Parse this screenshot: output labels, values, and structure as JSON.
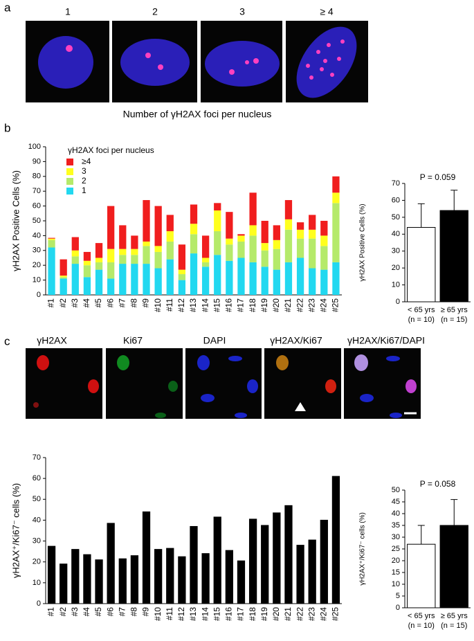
{
  "figure": {
    "panel_labels": [
      "a",
      "b",
      "c"
    ],
    "foci_labels": [
      "1",
      "2",
      "3",
      "≥ 4"
    ],
    "foci_caption": "Number of γH2AX foci per nucleus",
    "channel_labels": [
      "γH2AX",
      "Ki67",
      "DAPI",
      "γH2AX/Ki67",
      "γH2AX/Ki67/DAPI"
    ]
  },
  "chart_data": [
    {
      "type": "bar",
      "stacked": true,
      "y_label": "γH2AX Positive Cells (%)",
      "legend_title": "γH2AX foci per nucleus",
      "categories": [
        "#1",
        "#2",
        "#3",
        "#4",
        "#5",
        "#6",
        "#7",
        "#8",
        "#9",
        "#10",
        "#11",
        "#12",
        "#13",
        "#14",
        "#15",
        "#16",
        "#17",
        "#18",
        "#19",
        "#20",
        "#21",
        "#22",
        "#23",
        "#24",
        "#25"
      ],
      "series": [
        {
          "name": "1",
          "color": "#22d8f0",
          "values": [
            32,
            11,
            21,
            12,
            17,
            11,
            21,
            21,
            21,
            18,
            24,
            10,
            28,
            19,
            27,
            23,
            25,
            22,
            19,
            17,
            22,
            25,
            18,
            17,
            22
          ]
        },
        {
          "name": "2",
          "color": "#b5ea6a",
          "values": [
            5,
            1,
            5,
            8,
            5,
            11,
            6,
            6,
            12,
            11,
            12,
            4,
            13,
            3,
            16,
            11,
            11,
            18,
            11,
            14,
            22,
            13,
            20,
            16,
            40
          ]
        },
        {
          "name": "3",
          "color": "#ffff1e",
          "values": [
            1,
            1,
            4,
            3,
            3,
            9,
            4,
            4,
            3,
            4,
            7,
            3,
            7,
            3,
            14,
            4,
            4,
            7,
            5,
            6,
            7,
            6,
            6,
            7,
            7
          ]
        },
        {
          "name": "≥4",
          "color": "#f01e1e",
          "values": [
            0.5,
            11,
            9,
            6,
            10,
            29,
            16,
            9,
            28,
            27,
            11,
            17,
            13,
            15,
            5,
            18,
            1,
            22,
            15,
            10,
            13,
            5,
            10,
            10,
            11
          ]
        }
      ],
      "ylim": [
        0,
        100
      ],
      "yticks": [
        0,
        10,
        20,
        30,
        40,
        50,
        60,
        70,
        80,
        90,
        100
      ]
    },
    {
      "type": "bar",
      "y_label": "γH2AX Positive Cells (%)",
      "annotation": "P = 0.059",
      "categories": [
        "< 65 yrs",
        "≥ 65 yrs"
      ],
      "category_notes": [
        "(n = 10)",
        "(n = 15)"
      ],
      "values": [
        44,
        54
      ],
      "errors": [
        14,
        12
      ],
      "colors": [
        "#ffffff",
        "#000000"
      ],
      "ylim": [
        0,
        70
      ],
      "yticks": [
        0,
        10,
        20,
        30,
        40,
        50,
        60,
        70
      ]
    },
    {
      "type": "bar",
      "y_label": "γH2AX⁺/Ki67⁻ cells (%)",
      "categories": [
        "#1",
        "#2",
        "#3",
        "#4",
        "#5",
        "#6",
        "#7",
        "#8",
        "#9",
        "#10",
        "#11",
        "#12",
        "#13",
        "#14",
        "#15",
        "#16",
        "#17",
        "#18",
        "#19",
        "#20",
        "#21",
        "#22",
        "#23",
        "#24",
        "#25"
      ],
      "values": [
        27.5,
        19,
        26,
        23.5,
        21,
        38.5,
        21.5,
        23,
        44,
        26,
        26.5,
        22.5,
        37,
        24,
        41.5,
        25.5,
        20.5,
        40.5,
        37.5,
        43.5,
        47,
        28,
        30.5,
        40,
        61
      ],
      "color": "#000000",
      "ylim": [
        0,
        70
      ],
      "yticks": [
        0,
        10,
        20,
        30,
        40,
        50,
        60,
        70
      ]
    },
    {
      "type": "bar",
      "y_label": "γH2AX⁺/Ki67⁻ cells (%)",
      "annotation": "P = 0.058",
      "categories": [
        "< 65 yrs",
        "≥ 65 yrs"
      ],
      "category_notes": [
        "(n = 10)",
        "(n = 15)"
      ],
      "values": [
        27,
        35
      ],
      "errors": [
        8,
        11
      ],
      "colors": [
        "#ffffff",
        "#000000"
      ],
      "ylim": [
        0,
        50
      ],
      "yticks": [
        0,
        5,
        10,
        15,
        20,
        25,
        30,
        35,
        40,
        45,
        50
      ]
    }
  ]
}
